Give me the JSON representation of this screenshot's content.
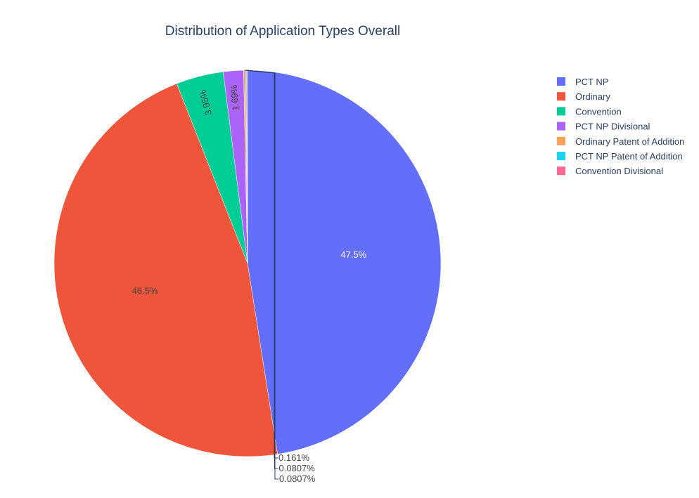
{
  "chart_data": {
    "type": "pie",
    "title": "Distribution of Application Types Overall",
    "slices": [
      {
        "label": "PCT NP",
        "value": 47.5,
        "text": "47.5%",
        "color": "#636EFA"
      },
      {
        "label": "Ordinary",
        "value": 46.5,
        "text": "46.5%",
        "color": "#EF553B"
      },
      {
        "label": "Convention",
        "value": 3.95,
        "text": "3.95%",
        "color": "#00CC96"
      },
      {
        "label": "PCT NP Divisional",
        "value": 1.69,
        "text": "1.69%",
        "color": "#AB63FA"
      },
      {
        "label": "Ordinary Patent of Addition",
        "value": 0.161,
        "text": "0.161%",
        "color": "#FFA15A"
      },
      {
        "label": "PCT NP Patent of Addition",
        "value": 0.0807,
        "text": "0.0807%",
        "color": "#19D3F3"
      },
      {
        "label": "Convention Divisional",
        "value": 0.0807,
        "text": "0.0807%",
        "color": "#FF6692"
      }
    ],
    "legend_position": "top-right",
    "direction": "clockwise",
    "start_angle": "top"
  }
}
